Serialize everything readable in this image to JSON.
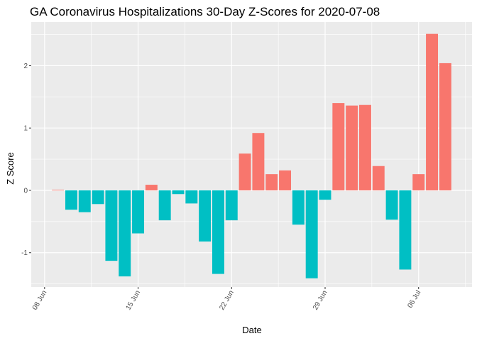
{
  "chart_data": {
    "type": "bar",
    "title": "GA Coronavirus Hospitalizations 30-Day Z-Scores for 2020-07-08",
    "xlabel": "Date",
    "ylabel": "Z Score",
    "x_start": "2020-06-09",
    "x_range": [
      "2020-06-07",
      "2020-07-10"
    ],
    "ylim": [
      -1.55,
      2.7
    ],
    "grid": true,
    "legend": "none",
    "colors": {
      "positive": "#F8766D",
      "negative": "#00BFC4",
      "panel": "#EBEBEB",
      "grid": "#FFFFFF",
      "axis": "#333333"
    },
    "y_ticks": [
      -1,
      0,
      1,
      2
    ],
    "x_ticks": [
      {
        "date": "2020-06-08",
        "label": "08 Jun"
      },
      {
        "date": "2020-06-15",
        "label": "15 Jun"
      },
      {
        "date": "2020-06-22",
        "label": "22 Jun"
      },
      {
        "date": "2020-06-29",
        "label": "29 Jun"
      },
      {
        "date": "2020-07-06",
        "label": "06 Jul"
      }
    ],
    "values": [
      0.01,
      -0.31,
      -0.35,
      -0.22,
      -1.13,
      -1.38,
      -0.69,
      0.09,
      -0.48,
      -0.06,
      -0.21,
      -0.82,
      -1.34,
      -0.48,
      0.59,
      0.92,
      0.26,
      0.32,
      -0.55,
      -1.41,
      -0.15,
      1.4,
      1.36,
      1.37,
      0.39,
      -0.47,
      -1.27,
      0.26,
      2.51,
      2.04
    ]
  }
}
